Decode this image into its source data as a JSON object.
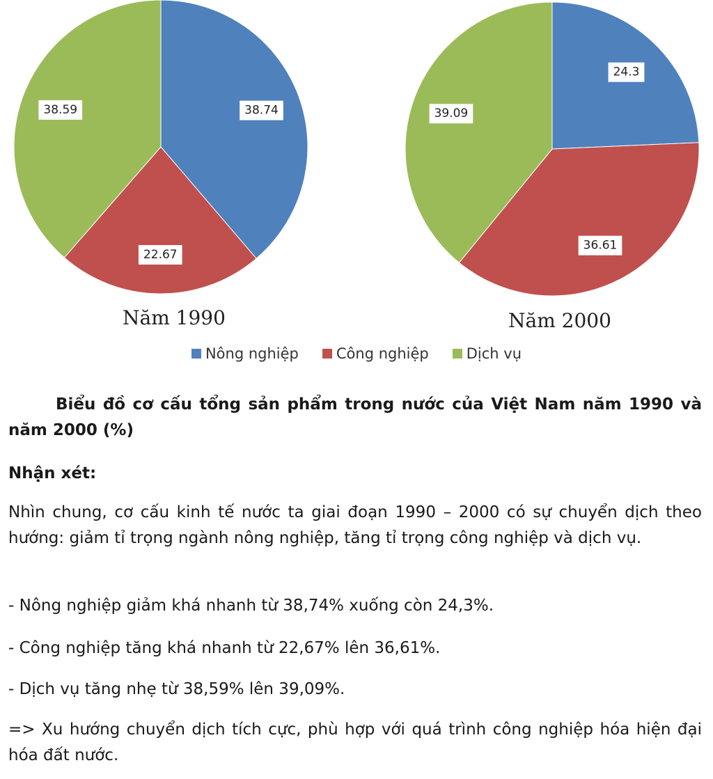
{
  "chart_data": [
    {
      "type": "pie",
      "title": "Năm 1990",
      "categories": [
        "Nông nghiệp",
        "Công nghiệp",
        "Dịch vụ"
      ],
      "values": [
        38.74,
        22.67,
        38.59
      ],
      "labels": [
        "38.74",
        "22.67",
        "38.59"
      ],
      "colors": [
        "#4f81bd",
        "#c0504d",
        "#9bbb59"
      ]
    },
    {
      "type": "pie",
      "title": "Năm 2000",
      "categories": [
        "Nông nghiệp",
        "Công nghiệp",
        "Dịch vụ"
      ],
      "values": [
        24.3,
        36.61,
        39.09
      ],
      "labels": [
        "24.3",
        "36.61",
        "39.09"
      ],
      "colors": [
        "#4f81bd",
        "#c0504d",
        "#9bbb59"
      ]
    }
  ],
  "legend": {
    "position": "bottom",
    "items": [
      {
        "label": "Nông nghiệp",
        "color": "#4f81bd"
      },
      {
        "label": "Công nghiệp",
        "color": "#c0504d"
      },
      {
        "label": "Dịch vụ",
        "color": "#9bbb59"
      }
    ]
  },
  "text": {
    "caption": "Biểu đồ cơ cấu tổng sản phẩm trong nước của Việt Nam năm 1990 và năm 2000 (%)",
    "heading": "Nhận xét:",
    "summary": "Nhìn chung, cơ cấu kinh tế nước ta giai đoạn 1990 – 2000 có sự chuyển dịch theo hướng: giảm tỉ trọng ngành nông nghiệp, tăng tỉ trọng công nghiệp và dịch vụ.",
    "bullet_1": "- Nông nghiệp giảm khá nhanh từ 38,74% xuống còn 24,3%.",
    "bullet_2": "- Công nghiệp tăng khá nhanh từ 22,67% lên 36,61%.",
    "bullet_3": "- Dịch vụ tăng nhẹ từ 38,59% lên 39,09%.",
    "conclusion": "=> Xu hướng chuyển dịch tích cực, phù hợp với quá trình công nghiệp hóa hiện đại hóa đất nước."
  }
}
